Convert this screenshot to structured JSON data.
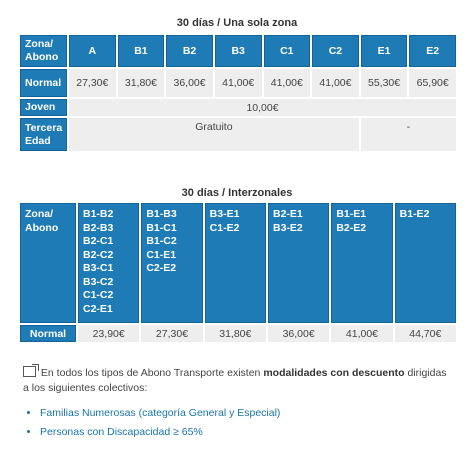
{
  "table1": {
    "title": "30 días / Una sola zona",
    "header": [
      "Zona/\nAbono",
      "A",
      "B1",
      "B2",
      "B3",
      "C1",
      "C2",
      "E1",
      "E2"
    ],
    "rows": {
      "normal": {
        "label": "Normal",
        "values": [
          "27,30€",
          "31,80€",
          "36,00€",
          "41,00€",
          "41,00€",
          "41,00€",
          "55,30€",
          "65,90€"
        ]
      },
      "joven": {
        "label": "Joven",
        "value": "10,00€"
      },
      "tercera": {
        "label": "Tercera\nEdad",
        "value_main": "Gratuito",
        "value_rest": "-"
      }
    }
  },
  "table2": {
    "title": "30 días / Interzonales",
    "header_label": "Zona/\nAbono",
    "categories": [
      "B1-B2\nB2-B3\nB2-C1\nB2-C2\nB3-C1\nB3-C2\nC1-C2\nC2-E1",
      "B1-B3\nB1-C1\nB1-C2\nC1-E1\nC2-E2",
      "B3-E1\nC1-E2",
      "B2-E1\nB3-E2",
      "B1-E1\nB2-E2",
      "B1-E2"
    ],
    "normal_label": "Normal",
    "normal_values": [
      "23,90€",
      "27,30€",
      "31,80€",
      "36,00€",
      "41,00€",
      "44,70€"
    ]
  },
  "note": {
    "text_before": "En todos los tipos de Abono Transporte existen ",
    "text_bold": "modalidades con descuento",
    "text_after": " dirigidas a los siguientes colectivos:"
  },
  "links": [
    "Familias Numerosas (categoría General y Especial)",
    "Personas con Discapacidad ≥ 65%"
  ],
  "colors": {
    "header_blue": "#1f7bb5",
    "cell_gray": "#eeeeee",
    "link_blue": "#1a74a8"
  }
}
